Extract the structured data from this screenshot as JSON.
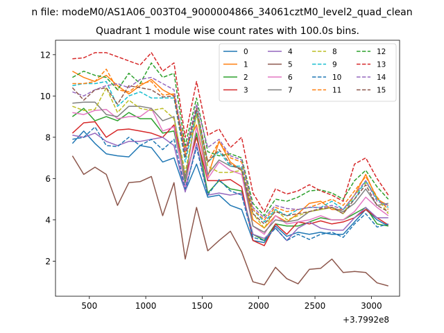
{
  "figure": {
    "suptitle": "n file: modeM0/AS1A06_003T04_9000004866_34061cztM0_level2_quad_clean",
    "title": "Quadrant 1 module wise count rates with 100.0s bins."
  },
  "chart_data": {
    "type": "line",
    "title": "Quadrant 1 module wise count rates with 100.0s bins.",
    "xlabel": "",
    "ylabel": "",
    "x_offset_label": "+3.7992e8",
    "xlim": [
      200,
      3250
    ],
    "ylim": [
      0.3,
      12.7
    ],
    "xticks": [
      500,
      1000,
      1500,
      2000,
      2500,
      3000
    ],
    "yticks": [
      2,
      4,
      6,
      8,
      10,
      12
    ],
    "grid": false,
    "legend": {
      "location": "upper-right",
      "columns": 4
    },
    "x": [
      350,
      450,
      550,
      650,
      750,
      850,
      950,
      1050,
      1150,
      1250,
      1350,
      1450,
      1550,
      1650,
      1750,
      1850,
      1950,
      2050,
      2150,
      2250,
      2350,
      2450,
      2550,
      2650,
      2750,
      2850,
      2950,
      3050,
      3150
    ],
    "series": [
      {
        "name": "0",
        "color": "#1f77b4",
        "style": "solid",
        "values": [
          7.7,
          8.3,
          7.7,
          7.2,
          7.1,
          7.05,
          7.6,
          7.5,
          6.8,
          7.0,
          5.4,
          6.7,
          5.1,
          5.2,
          4.7,
          4.5,
          3.0,
          2.9,
          3.7,
          3.2,
          3.4,
          3.3,
          3.4,
          3.3,
          3.3,
          3.9,
          4.5,
          4.0,
          3.7
        ]
      },
      {
        "name": "1",
        "color": "#ff7f0e",
        "style": "solid",
        "values": [
          11.2,
          10.9,
          10.7,
          11.0,
          10.5,
          10.1,
          10.5,
          10.8,
          10.3,
          10.0,
          7.5,
          8.6,
          6.1,
          7.8,
          6.8,
          6.4,
          4.0,
          3.6,
          4.2,
          3.9,
          4.3,
          4.8,
          4.9,
          4.5,
          4.5,
          5.2,
          6.2,
          5.0,
          4.7
        ]
      },
      {
        "name": "2",
        "color": "#2ca02c",
        "style": "solid",
        "values": [
          9.0,
          9.4,
          8.8,
          9.0,
          8.8,
          9.2,
          8.9,
          8.9,
          8.2,
          8.3,
          5.8,
          8.2,
          5.3,
          5.9,
          5.5,
          5.4,
          3.3,
          3.0,
          3.8,
          3.7,
          3.7,
          3.9,
          4.1,
          4.0,
          4.0,
          4.3,
          4.6,
          3.8,
          3.7
        ]
      },
      {
        "name": "3",
        "color": "#d62728",
        "style": "solid",
        "values": [
          8.2,
          8.7,
          8.75,
          8.0,
          8.35,
          8.4,
          8.3,
          8.2,
          8.0,
          8.6,
          6.1,
          8.0,
          5.9,
          5.9,
          5.95,
          5.6,
          3.0,
          2.75,
          3.8,
          3.3,
          3.9,
          3.8,
          3.95,
          3.8,
          3.9,
          4.1,
          4.5,
          4.1,
          3.75
        ]
      },
      {
        "name": "4",
        "color": "#9467bd",
        "style": "solid",
        "values": [
          8.1,
          8.0,
          8.2,
          7.8,
          7.6,
          7.8,
          7.8,
          7.9,
          8.0,
          7.6,
          5.35,
          7.7,
          5.2,
          5.3,
          5.2,
          5.3,
          3.3,
          3.1,
          3.6,
          3.0,
          3.6,
          3.9,
          3.6,
          3.5,
          3.5,
          4.1,
          4.6,
          4.1,
          4.1
        ]
      },
      {
        "name": "5",
        "color": "#8c564b",
        "style": "solid",
        "values": [
          7.1,
          6.2,
          6.55,
          6.2,
          4.7,
          5.8,
          5.85,
          6.1,
          4.2,
          5.8,
          2.1,
          4.6,
          2.5,
          3.0,
          3.45,
          2.45,
          1.0,
          0.85,
          1.7,
          1.15,
          0.9,
          1.6,
          1.65,
          2.1,
          1.45,
          1.5,
          1.45,
          0.95,
          0.8
        ]
      },
      {
        "name": "6",
        "color": "#e377c2",
        "style": "solid",
        "values": [
          9.2,
          9.1,
          9.3,
          9.35,
          8.9,
          9.0,
          9.0,
          9.4,
          8.3,
          8.5,
          5.6,
          8.5,
          6.0,
          6.8,
          6.4,
          6.2,
          3.7,
          3.3,
          4.2,
          3.8,
          3.9,
          4.0,
          4.2,
          4.0,
          4.0,
          4.4,
          5.1,
          4.6,
          4.2
        ]
      },
      {
        "name": "7",
        "color": "#7f7f7f",
        "style": "solid",
        "values": [
          9.65,
          9.7,
          9.7,
          9.1,
          9.0,
          9.5,
          9.5,
          9.4,
          8.8,
          9.0,
          6.0,
          9.2,
          6.2,
          6.9,
          6.6,
          6.5,
          3.7,
          3.4,
          4.0,
          3.9,
          4.0,
          4.4,
          4.5,
          4.6,
          4.4,
          4.8,
          5.5,
          4.7,
          4.8
        ]
      },
      {
        "name": "8",
        "color": "#bcbd22",
        "style": "dashed",
        "values": [
          9.5,
          9.3,
          9.35,
          10.4,
          9.2,
          9.8,
          9.4,
          9.3,
          9.4,
          8.9,
          6.3,
          9.1,
          6.6,
          6.3,
          6.3,
          6.4,
          4.3,
          3.6,
          4.5,
          4.0,
          4.2,
          4.4,
          4.5,
          4.6,
          4.3,
          5.2,
          5.8,
          5.1,
          4.3
        ]
      },
      {
        "name": "9",
        "color": "#17becf",
        "style": "dashed",
        "values": [
          10.5,
          10.6,
          10.6,
          10.7,
          9.5,
          10.0,
          10.2,
          9.9,
          9.9,
          9.9,
          6.8,
          9.3,
          6.8,
          7.3,
          6.6,
          6.6,
          4.5,
          3.9,
          4.5,
          4.2,
          4.5,
          4.6,
          4.6,
          4.9,
          4.5,
          5.0,
          5.9,
          5.0,
          4.6
        ]
      },
      {
        "name": "10",
        "color": "#1f77b4",
        "style": "dashed",
        "values": [
          7.9,
          8.0,
          8.5,
          7.6,
          7.55,
          8.0,
          7.6,
          7.9,
          7.4,
          7.9,
          5.5,
          7.5,
          5.2,
          5.95,
          5.4,
          5.2,
          3.15,
          3.0,
          3.6,
          3.0,
          3.3,
          3.05,
          3.3,
          3.4,
          3.15,
          3.8,
          4.3,
          3.65,
          3.8
        ]
      },
      {
        "name": "11",
        "color": "#ff7f0e",
        "style": "dashed",
        "values": [
          10.6,
          10.6,
          10.7,
          11.3,
          10.3,
          10.2,
          10.6,
          10.7,
          10.05,
          10.1,
          7.2,
          9.4,
          6.8,
          7.8,
          7.0,
          6.8,
          4.5,
          4.0,
          4.6,
          4.4,
          4.5,
          4.6,
          4.8,
          5.0,
          4.7,
          5.4,
          6.1,
          5.1,
          4.5
        ]
      },
      {
        "name": "12",
        "color": "#2ca02c",
        "style": "dashed",
        "values": [
          10.9,
          11.2,
          11.0,
          10.9,
          10.3,
          11.1,
          10.6,
          11.6,
          10.9,
          11.1,
          7.6,
          9.9,
          7.3,
          7.1,
          7.2,
          7.0,
          4.8,
          4.2,
          5.0,
          4.9,
          5.1,
          5.4,
          5.45,
          5.3,
          5.0,
          5.9,
          6.4,
          5.6,
          5.0
        ]
      },
      {
        "name": "13",
        "color": "#d62728",
        "style": "dashed",
        "values": [
          11.8,
          11.85,
          12.1,
          12.1,
          11.9,
          11.7,
          11.5,
          12.1,
          11.2,
          11.6,
          8.0,
          10.7,
          8.1,
          8.4,
          7.5,
          8.0,
          5.3,
          4.4,
          5.5,
          5.25,
          5.4,
          5.7,
          5.4,
          5.2,
          4.9,
          6.7,
          7.0,
          6.0,
          5.2
        ]
      },
      {
        "name": "14",
        "color": "#9467bd",
        "style": "dashed",
        "values": [
          10.2,
          10.0,
          10.3,
          10.5,
          10.6,
          10.4,
          10.8,
          10.9,
          10.6,
          10.3,
          7.3,
          9.6,
          7.5,
          7.9,
          7.1,
          6.9,
          4.6,
          4.1,
          4.7,
          4.55,
          4.5,
          4.6,
          4.6,
          4.7,
          4.5,
          5.2,
          5.9,
          4.9,
          4.7
        ]
      },
      {
        "name": "15",
        "color": "#8c564b",
        "style": "dashed",
        "values": [
          10.4,
          9.8,
          10.3,
          10.4,
          9.6,
          10.5,
          10.4,
          10.3,
          9.95,
          10.0,
          7.0,
          9.4,
          6.8,
          7.4,
          6.7,
          6.4,
          4.3,
          3.8,
          4.4,
          4.2,
          4.3,
          4.4,
          4.55,
          4.6,
          4.3,
          5.0,
          5.7,
          4.7,
          4.4
        ]
      }
    ]
  }
}
